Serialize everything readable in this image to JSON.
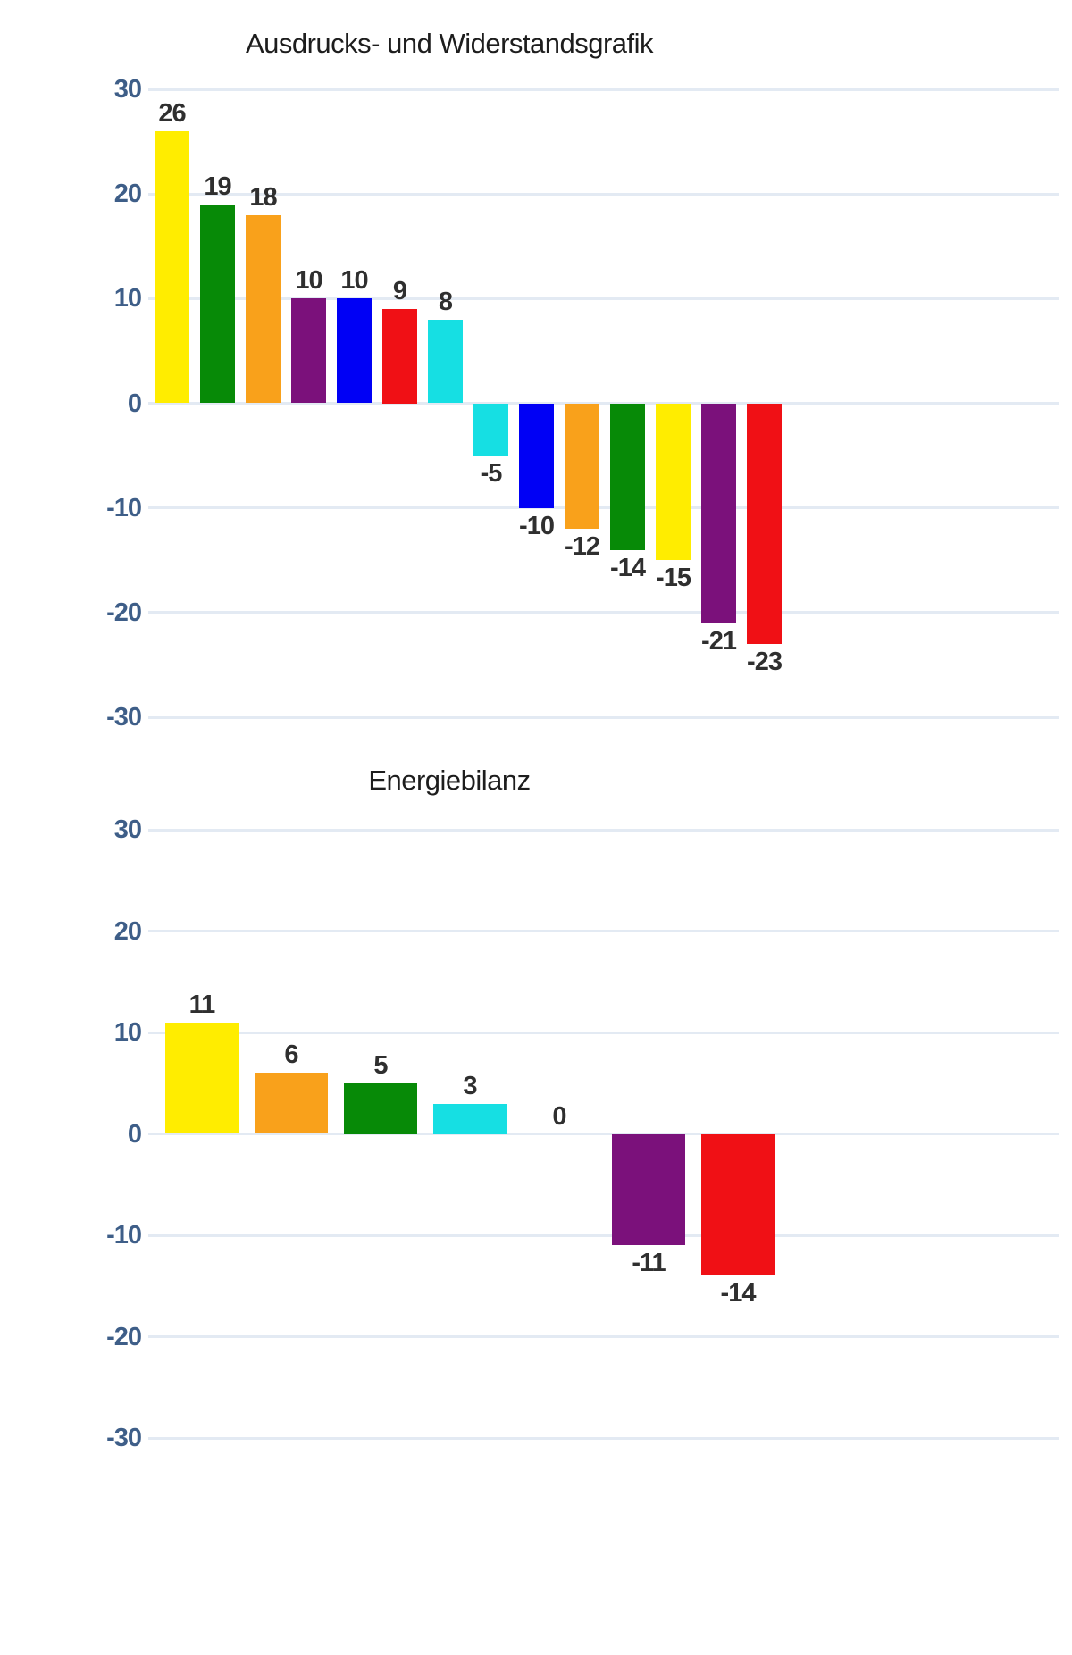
{
  "chart_data": [
    {
      "type": "bar",
      "title": "Ausdrucks- und Widerstandsgrafik",
      "categories": [],
      "values": [
        26,
        19,
        18,
        10,
        10,
        9,
        8,
        -5,
        -10,
        -12,
        -14,
        -15,
        -21,
        -23
      ],
      "bar_labels": [
        "26",
        "19",
        "18",
        "10",
        "10",
        "9",
        "8",
        "-5",
        "-10",
        "-12",
        "-14",
        "-15",
        "-21",
        "-23"
      ],
      "bar_colors": [
        "#FFED00",
        "#078A07",
        "#F9A11B",
        "#7B117B",
        "#0000F5",
        "#F01015",
        "#16DFE3",
        "#16DFE3",
        "#0000F5",
        "#F9A11B",
        "#078A07",
        "#FFED00",
        "#7B117B",
        "#F01015"
      ],
      "xlabel": "",
      "ylabel": "",
      "ylim": [
        -30,
        30
      ],
      "yticks": [
        30,
        20,
        10,
        0,
        -10,
        -20,
        -30
      ],
      "ytick_labels": [
        "30",
        "20",
        "10",
        "0",
        "-10",
        "-20",
        "-30"
      ],
      "grid": true,
      "legend": false
    },
    {
      "type": "bar",
      "title": "Energiebilanz",
      "categories": [],
      "values": [
        11,
        6,
        5,
        3,
        0,
        -11,
        -14
      ],
      "bar_labels": [
        "11",
        "6",
        "5",
        "3",
        "0",
        "-11",
        "-14"
      ],
      "bar_colors": [
        "#FFED00",
        "#F9A11B",
        "#078A07",
        "#16DFE3",
        null,
        "#7B117B",
        "#F01015"
      ],
      "xlabel": "",
      "ylabel": "",
      "ylim": [
        -30,
        30
      ],
      "yticks": [
        30,
        20,
        10,
        0,
        -10,
        -20,
        -30
      ],
      "ytick_labels": [
        "30",
        "20",
        "10",
        "0",
        "-10",
        "-20",
        "-30"
      ],
      "grid": true,
      "legend": false
    }
  ],
  "styles": {
    "background": "#FFFFFF",
    "grid_color": "#E3EAF3",
    "axis_label_color": "#3E5E88",
    "value_label_color": "#2F2F2F",
    "title_color": "#1D1D1D"
  }
}
